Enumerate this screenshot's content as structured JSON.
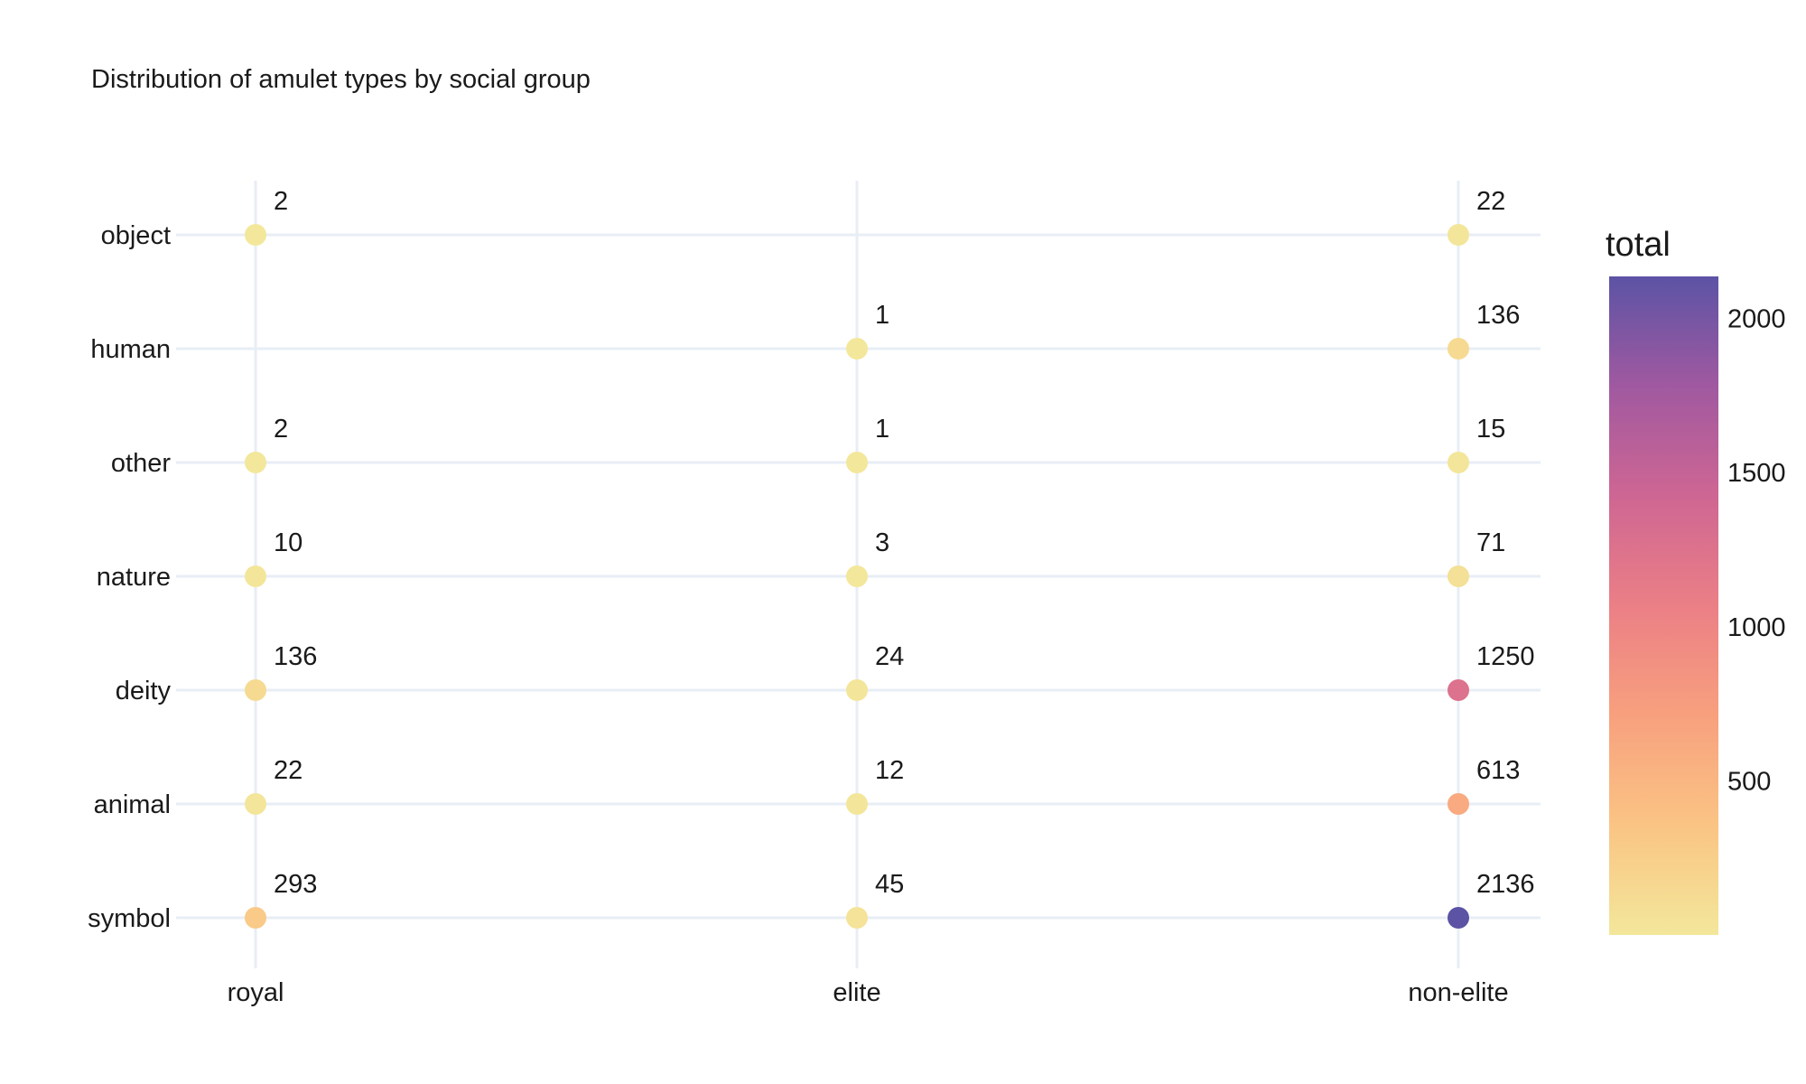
{
  "chart_data": {
    "type": "scatter",
    "title": "Distribution of amulet types by social group",
    "x_categories": [
      "royal",
      "elite",
      "non-elite"
    ],
    "y_categories": [
      "object",
      "human",
      "other",
      "nature",
      "deity",
      "animal",
      "symbol"
    ],
    "points": [
      {
        "x": "royal",
        "y": "object",
        "value": 2
      },
      {
        "x": "non-elite",
        "y": "object",
        "value": 22
      },
      {
        "x": "elite",
        "y": "human",
        "value": 1
      },
      {
        "x": "non-elite",
        "y": "human",
        "value": 136
      },
      {
        "x": "royal",
        "y": "other",
        "value": 2
      },
      {
        "x": "elite",
        "y": "other",
        "value": 1
      },
      {
        "x": "non-elite",
        "y": "other",
        "value": 15
      },
      {
        "x": "royal",
        "y": "nature",
        "value": 10
      },
      {
        "x": "elite",
        "y": "nature",
        "value": 3
      },
      {
        "x": "non-elite",
        "y": "nature",
        "value": 71
      },
      {
        "x": "royal",
        "y": "deity",
        "value": 136
      },
      {
        "x": "elite",
        "y": "deity",
        "value": 24
      },
      {
        "x": "non-elite",
        "y": "deity",
        "value": 1250
      },
      {
        "x": "royal",
        "y": "animal",
        "value": 22
      },
      {
        "x": "elite",
        "y": "animal",
        "value": 12
      },
      {
        "x": "non-elite",
        "y": "animal",
        "value": 613
      },
      {
        "x": "royal",
        "y": "symbol",
        "value": 293
      },
      {
        "x": "elite",
        "y": "symbol",
        "value": 45
      },
      {
        "x": "non-elite",
        "y": "symbol",
        "value": 2136
      }
    ],
    "color_scale": {
      "title": "total",
      "min": 1,
      "max": 2136,
      "ticks": [
        500,
        1000,
        1500,
        2000
      ],
      "colors": [
        "#f3e79b",
        "#fac484",
        "#f8a07e",
        "#eb7f86",
        "#ce6693",
        "#a059a0",
        "#5c53a5"
      ]
    },
    "grid": true,
    "legend_position": "right"
  }
}
